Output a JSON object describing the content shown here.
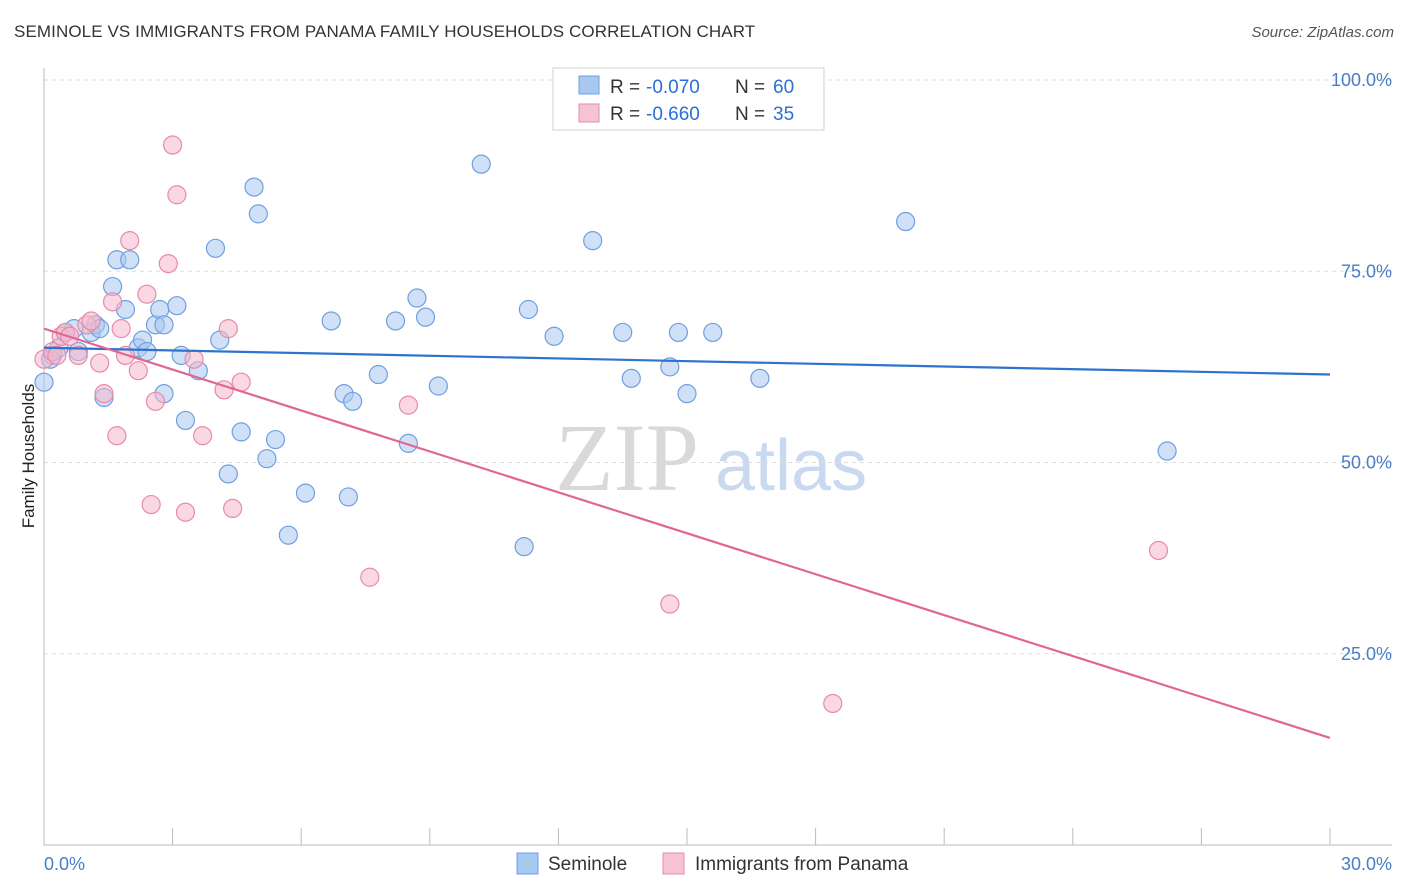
{
  "title": "SEMINOLE VS IMMIGRANTS FROM PANAMA FAMILY HOUSEHOLDS CORRELATION CHART",
  "source": "Source: ZipAtlas.com",
  "watermark": {
    "zip": "ZIP",
    "atlas": "atlas"
  },
  "colors": {
    "seminole_fill": "#a9c8f0",
    "seminole_stroke": "#6f9fe0",
    "seminole_line": "#2f73cc",
    "panama_fill": "#f5b8cc",
    "panama_stroke": "#e88aa8",
    "panama_line": "#e06693",
    "tick_text": "#4a7cc7",
    "grid": "#dddddd"
  },
  "legend": {
    "rows": [
      {
        "r_label": "R =",
        "r_value": "-0.070",
        "n_label": "N =",
        "n_value": "60"
      },
      {
        "r_label": "R =",
        "r_value": "-0.660",
        "n_label": "N =",
        "n_value": "35"
      }
    ]
  },
  "chart_data": {
    "type": "scatter",
    "title": "SEMINOLE VS IMMIGRANTS FROM PANAMA FAMILY HOUSEHOLDS CORRELATION CHART",
    "xlabel": "",
    "ylabel": "Family Households",
    "xlim": [
      0,
      30
    ],
    "ylim": [
      0,
      102
    ],
    "x_tick_labels": [
      "0.0%",
      "30.0%"
    ],
    "y_ticks": [
      25,
      50,
      75,
      100
    ],
    "y_tick_labels": [
      "25.0%",
      "50.0%",
      "75.0%",
      "100.0%"
    ],
    "grid": true,
    "series": [
      {
        "name": "Seminole",
        "r": -0.07,
        "n": 60,
        "trend": {
          "x": [
            0,
            30
          ],
          "y": [
            65.0,
            61.5
          ]
        },
        "points": [
          [
            0.0,
            60.5
          ],
          [
            0.2,
            64.0
          ],
          [
            0.35,
            65.0
          ],
          [
            0.5,
            67.0
          ],
          [
            0.7,
            67.5
          ],
          [
            0.8,
            64.5
          ],
          [
            1.1,
            67.0
          ],
          [
            1.2,
            68.0
          ],
          [
            1.3,
            67.5
          ],
          [
            1.4,
            58.5
          ],
          [
            1.6,
            73.0
          ],
          [
            1.7,
            76.5
          ],
          [
            1.9,
            70.0
          ],
          [
            2.0,
            76.5
          ],
          [
            2.2,
            65.0
          ],
          [
            2.3,
            66.0
          ],
          [
            2.4,
            64.5
          ],
          [
            2.6,
            68.0
          ],
          [
            2.7,
            70.0
          ],
          [
            2.8,
            59.0
          ],
          [
            2.8,
            68.0
          ],
          [
            3.1,
            70.5
          ],
          [
            3.2,
            64.0
          ],
          [
            3.3,
            55.5
          ],
          [
            3.6,
            62.0
          ],
          [
            4.0,
            78.0
          ],
          [
            4.1,
            66.0
          ],
          [
            4.3,
            48.5
          ],
          [
            4.6,
            54.0
          ],
          [
            4.9,
            86.0
          ],
          [
            5.0,
            82.5
          ],
          [
            5.2,
            50.5
          ],
          [
            5.4,
            53.0
          ],
          [
            5.7,
            40.5
          ],
          [
            6.1,
            46.0
          ],
          [
            6.7,
            68.5
          ],
          [
            7.0,
            59.0
          ],
          [
            7.1,
            45.5
          ],
          [
            7.2,
            58.0
          ],
          [
            7.8,
            61.5
          ],
          [
            8.2,
            68.5
          ],
          [
            8.5,
            52.5
          ],
          [
            8.7,
            71.5
          ],
          [
            8.9,
            69.0
          ],
          [
            9.2,
            60.0
          ],
          [
            10.2,
            89.0
          ],
          [
            11.2,
            39.0
          ],
          [
            11.3,
            70.0
          ],
          [
            11.9,
            66.5
          ],
          [
            12.8,
            79.0
          ],
          [
            13.5,
            67.0
          ],
          [
            13.7,
            61.0
          ],
          [
            14.6,
            62.5
          ],
          [
            14.8,
            67.0
          ],
          [
            15.0,
            59.0
          ],
          [
            15.6,
            67.0
          ],
          [
            16.7,
            61.0
          ],
          [
            20.1,
            81.5
          ],
          [
            26.2,
            51.5
          ],
          [
            0.15,
            63.5
          ]
        ]
      },
      {
        "name": "Immigrants from Panama",
        "r": -0.66,
        "n": 35,
        "trend": {
          "x": [
            0,
            30
          ],
          "y": [
            67.5,
            14.0
          ]
        },
        "points": [
          [
            0.0,
            63.5
          ],
          [
            0.2,
            64.5
          ],
          [
            0.4,
            66.5
          ],
          [
            0.5,
            67.0
          ],
          [
            0.6,
            66.5
          ],
          [
            0.8,
            64.0
          ],
          [
            1.0,
            68.0
          ],
          [
            1.1,
            68.5
          ],
          [
            1.3,
            63.0
          ],
          [
            1.4,
            59.0
          ],
          [
            1.6,
            71.0
          ],
          [
            1.7,
            53.5
          ],
          [
            1.8,
            67.5
          ],
          [
            1.9,
            64.0
          ],
          [
            2.0,
            79.0
          ],
          [
            2.2,
            62.0
          ],
          [
            2.4,
            72.0
          ],
          [
            2.5,
            44.5
          ],
          [
            2.6,
            58.0
          ],
          [
            2.9,
            76.0
          ],
          [
            3.0,
            91.5
          ],
          [
            3.1,
            85.0
          ],
          [
            3.3,
            43.5
          ],
          [
            3.5,
            63.5
          ],
          [
            3.7,
            53.5
          ],
          [
            4.2,
            59.5
          ],
          [
            4.3,
            67.5
          ],
          [
            4.4,
            44.0
          ],
          [
            4.6,
            60.5
          ],
          [
            7.6,
            35.0
          ],
          [
            8.5,
            57.5
          ],
          [
            14.6,
            31.5
          ],
          [
            18.4,
            18.5
          ],
          [
            26.0,
            38.5
          ],
          [
            0.3,
            64.0
          ]
        ]
      }
    ]
  }
}
